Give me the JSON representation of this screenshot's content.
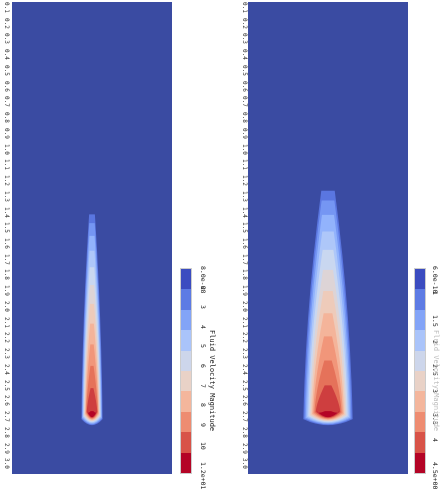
{
  "chart_data": [
    {
      "type": "heatmap",
      "title": "",
      "colorbar": {
        "title": "Fluid Velocity Magnitude",
        "min_label": "8.0e-08",
        "max_label": "1.2e+01",
        "tick_labels": [
          "2",
          "3",
          "4",
          "5",
          "6",
          "7",
          "8",
          "9",
          "10"
        ],
        "range": [
          8e-08,
          12
        ]
      },
      "axis_ticks": [
        "0.1",
        "0.2",
        "0.3",
        "0.4",
        "0.5",
        "0.6",
        "0.7",
        "0.8",
        "0.9",
        "1.0",
        "1.1",
        "1.2",
        "1.3",
        "1.4",
        "1.5",
        "1.6",
        "1.7",
        "1.8",
        "1.9",
        "2.0",
        "2.1",
        "2.2",
        "2.3",
        "2.4",
        "2.5",
        "2.6",
        "2.7",
        "2.8",
        "2.9",
        "3.0"
      ],
      "plume": {
        "center_x": 0.5,
        "source_depth": 2.6,
        "top_depth": 1.35,
        "half_width": 0.06,
        "peak": 12
      }
    },
    {
      "type": "heatmap",
      "title": "",
      "colorbar": {
        "title": "Fluid Velocity Magnitude",
        "min_label": "6.0e-10",
        "max_label": "4.5e+00",
        "tick_labels": [
          "1",
          "1.5",
          "2",
          "2.5",
          "3",
          "3.5",
          "4"
        ],
        "range": [
          6e-10,
          4.5
        ]
      },
      "axis_ticks": [
        "0.1",
        "0.2",
        "0.3",
        "0.4",
        "0.5",
        "0.6",
        "0.7",
        "0.8",
        "0.9",
        "1.0",
        "1.1",
        "1.2",
        "1.3",
        "1.4",
        "1.5",
        "1.6",
        "1.7",
        "1.8",
        "1.9",
        "2.0",
        "2.1",
        "2.2",
        "2.3",
        "2.4",
        "2.5",
        "2.6",
        "2.7",
        "2.8",
        "2.9",
        "3.0"
      ],
      "plume": {
        "center_x": 0.5,
        "source_depth": 2.6,
        "top_depth": 1.2,
        "half_width": 0.14,
        "peak": 4.5
      }
    }
  ],
  "colors": {
    "background": "#3a4ba2",
    "colormap": [
      "#3b4cc0",
      "#6788ee",
      "#9abbff",
      "#c9d7f0",
      "#edd1c2",
      "#f7a889",
      "#e26952",
      "#b40426"
    ]
  }
}
